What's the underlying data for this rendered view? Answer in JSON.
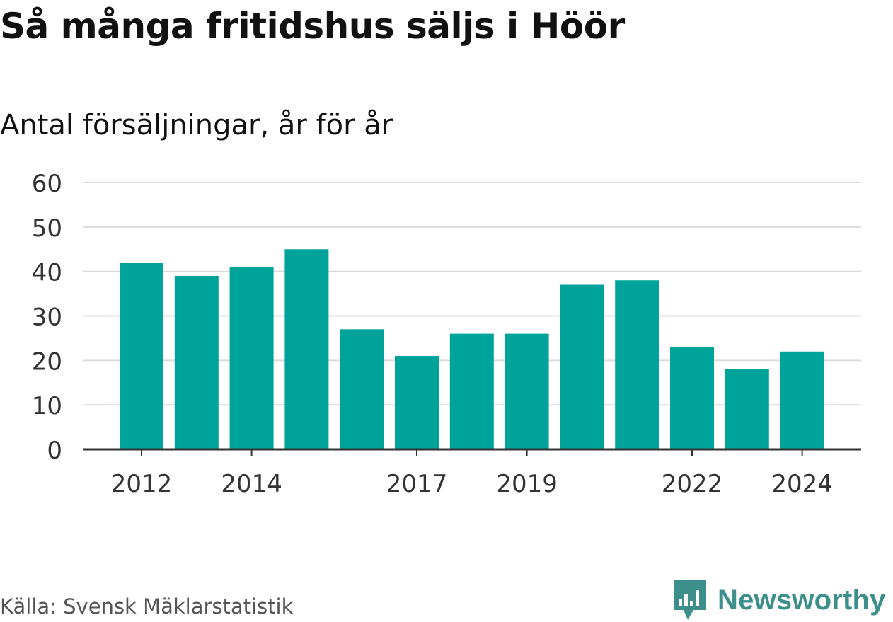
{
  "title": "Så många fritidshus säljs i Höör",
  "subtitle": "Antal försäljningar, år för år",
  "source": "Källa: Svensk Mäklarstatistik",
  "brand": {
    "name": "Newsworthy",
    "color": "#3c8f8b",
    "icon": "newsworthy-logo-icon"
  },
  "chart_data": {
    "type": "bar",
    "categories": [
      "2012",
      "2013",
      "2014",
      "2015",
      "2016",
      "2017",
      "2018",
      "2019",
      "2020",
      "2021",
      "2022",
      "2023",
      "2024"
    ],
    "values": [
      42,
      39,
      41,
      45,
      27,
      21,
      26,
      26,
      37,
      38,
      23,
      18,
      22
    ],
    "x_tick_labels": [
      "2012",
      "2014",
      "2017",
      "2019",
      "2022",
      "2024"
    ],
    "y_ticks": [
      0,
      10,
      20,
      30,
      40,
      50,
      60
    ],
    "ylim": [
      0,
      60
    ],
    "xlabel": "",
    "ylabel": "",
    "grid": true,
    "bar_color": "#00a39a"
  }
}
